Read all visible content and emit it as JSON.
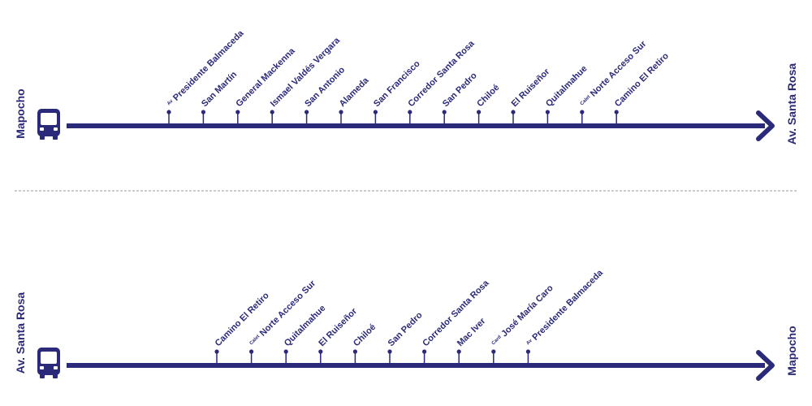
{
  "colors": {
    "route": "#2b2a7a",
    "divider": "#9a9a9a",
    "background": "#ffffff"
  },
  "icons": {
    "bus": "bus-icon",
    "arrow": "arrow-head-icon",
    "stop": "stop-pin-icon"
  },
  "routes": [
    {
      "origin": "Mapocho",
      "destination": "Av. Santa Rosa",
      "stops": [
        {
          "prefix": "Av",
          "name": "Presidente Balmaceda"
        },
        {
          "prefix": "",
          "name": "San Martín"
        },
        {
          "prefix": "",
          "name": "General Mackenna"
        },
        {
          "prefix": "",
          "name": "Ismael Valdés Vergara"
        },
        {
          "prefix": "",
          "name": "San Antonio"
        },
        {
          "prefix": "",
          "name": "Alameda"
        },
        {
          "prefix": "",
          "name": "San Francisco"
        },
        {
          "prefix": "",
          "name": "Corredor Santa Rosa"
        },
        {
          "prefix": "",
          "name": "San Pedro"
        },
        {
          "prefix": "",
          "name": "Chiloé"
        },
        {
          "prefix": "",
          "name": "El Ruiseñor"
        },
        {
          "prefix": "",
          "name": "Quitalmahue"
        },
        {
          "prefix": "Calet",
          "name": "Norte Acceso Sur"
        },
        {
          "prefix": "",
          "name": "Camino El Retiro"
        }
      ]
    },
    {
      "origin": "Av. Santa Rosa",
      "destination": "Mapocho",
      "stops": [
        {
          "prefix": "",
          "name": "Camino El Retiro"
        },
        {
          "prefix": "Calet",
          "name": "Norte Acceso Sur"
        },
        {
          "prefix": "",
          "name": "Quitalmahue"
        },
        {
          "prefix": "",
          "name": "El Ruiseñor"
        },
        {
          "prefix": "",
          "name": "Chiloé"
        },
        {
          "prefix": "",
          "name": "San Pedro"
        },
        {
          "prefix": "",
          "name": "Corredor Santa Rosa"
        },
        {
          "prefix": "",
          "name": "Mac Iver"
        },
        {
          "prefix": "Card",
          "name": "José María Caro"
        },
        {
          "prefix": "Av",
          "name": "Presidente Balmaceda"
        }
      ]
    }
  ]
}
